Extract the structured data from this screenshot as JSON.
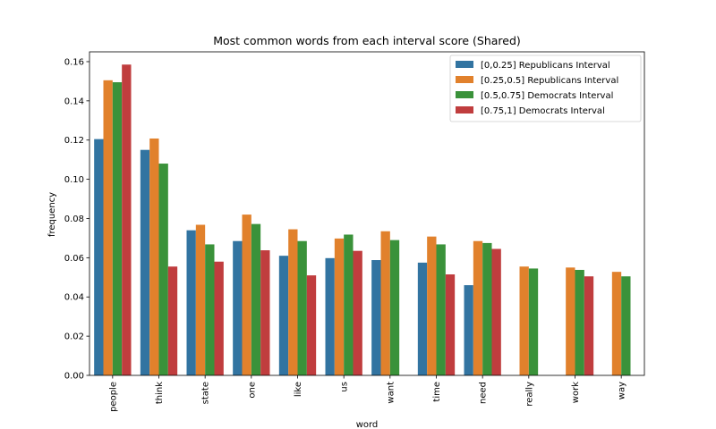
{
  "chart_data": {
    "type": "bar",
    "title": "Most common words from each interval score (Shared)",
    "xlabel": "word",
    "ylabel": "frequency",
    "categories": [
      "people",
      "think",
      "state",
      "one",
      "like",
      "us",
      "want",
      "time",
      "need",
      "really",
      "work",
      "way"
    ],
    "ylim": [
      0,
      0.165
    ],
    "yticks": [
      "0.00",
      "0.02",
      "0.04",
      "0.06",
      "0.08",
      "0.10",
      "0.12",
      "0.14",
      "0.16"
    ],
    "grid": false,
    "legend_position": "top-right",
    "series": [
      {
        "name": "[0,0.25] Republicans Interval",
        "color": "#3274a1",
        "values": [
          0.1205,
          0.115,
          0.074,
          0.0685,
          0.061,
          0.0598,
          0.0588,
          0.0575,
          0.046,
          null,
          null,
          null
        ]
      },
      {
        "name": "[0.25,0.5] Republicans Interval",
        "color": "#e1812c",
        "values": [
          0.1505,
          0.1208,
          0.0768,
          0.082,
          0.0745,
          0.0698,
          0.0735,
          0.0708,
          0.0685,
          0.0555,
          0.055,
          0.0528
        ]
      },
      {
        "name": "[0.5,0.75] Democrats Interval",
        "color": "#3a923a",
        "values": [
          0.1495,
          0.108,
          0.0668,
          0.0772,
          0.0685,
          0.0718,
          0.069,
          0.0668,
          0.0675,
          0.0545,
          0.0538,
          0.0505
        ]
      },
      {
        "name": "[0.75,1] Democrats Interval",
        "color": "#c03d3e",
        "values": [
          0.1585,
          0.0555,
          0.058,
          0.0638,
          0.051,
          0.0635,
          null,
          0.0515,
          0.0645,
          null,
          0.0505,
          null
        ]
      }
    ]
  }
}
